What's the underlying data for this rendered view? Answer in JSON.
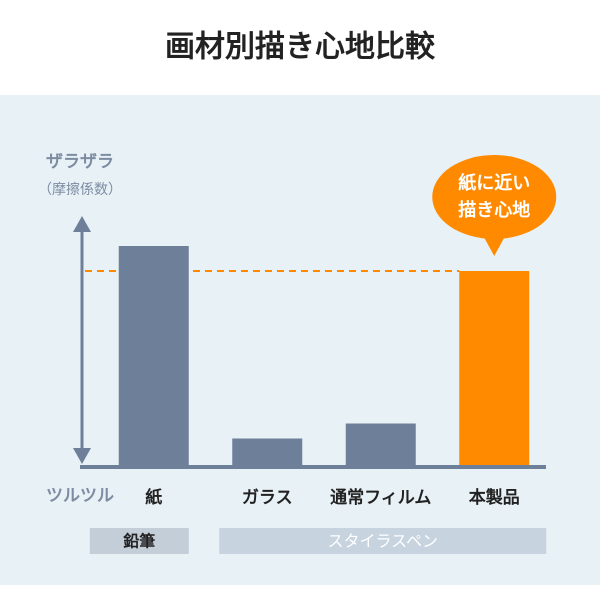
{
  "chart_data": {
    "type": "bar",
    "title": "画材別描き心地比較",
    "y_label_top": "ザラザラ",
    "y_label_sub": "（摩擦係数）",
    "y_label_bottom": "ツルツル",
    "categories": [
      "紙",
      "ガラス",
      "通常フィルム",
      "本製品"
    ],
    "values": [
      88,
      11,
      17,
      78
    ],
    "colors": [
      "#6e7f99",
      "#6e7f99",
      "#6e7f99",
      "#ff8a00"
    ],
    "ylim": [
      0,
      100
    ],
    "groups": [
      {
        "name": "鉛筆",
        "span": 1
      },
      {
        "name": "スタイラスペン",
        "span": 3
      }
    ],
    "callout": [
      "紙に近い",
      "描き心地"
    ]
  }
}
